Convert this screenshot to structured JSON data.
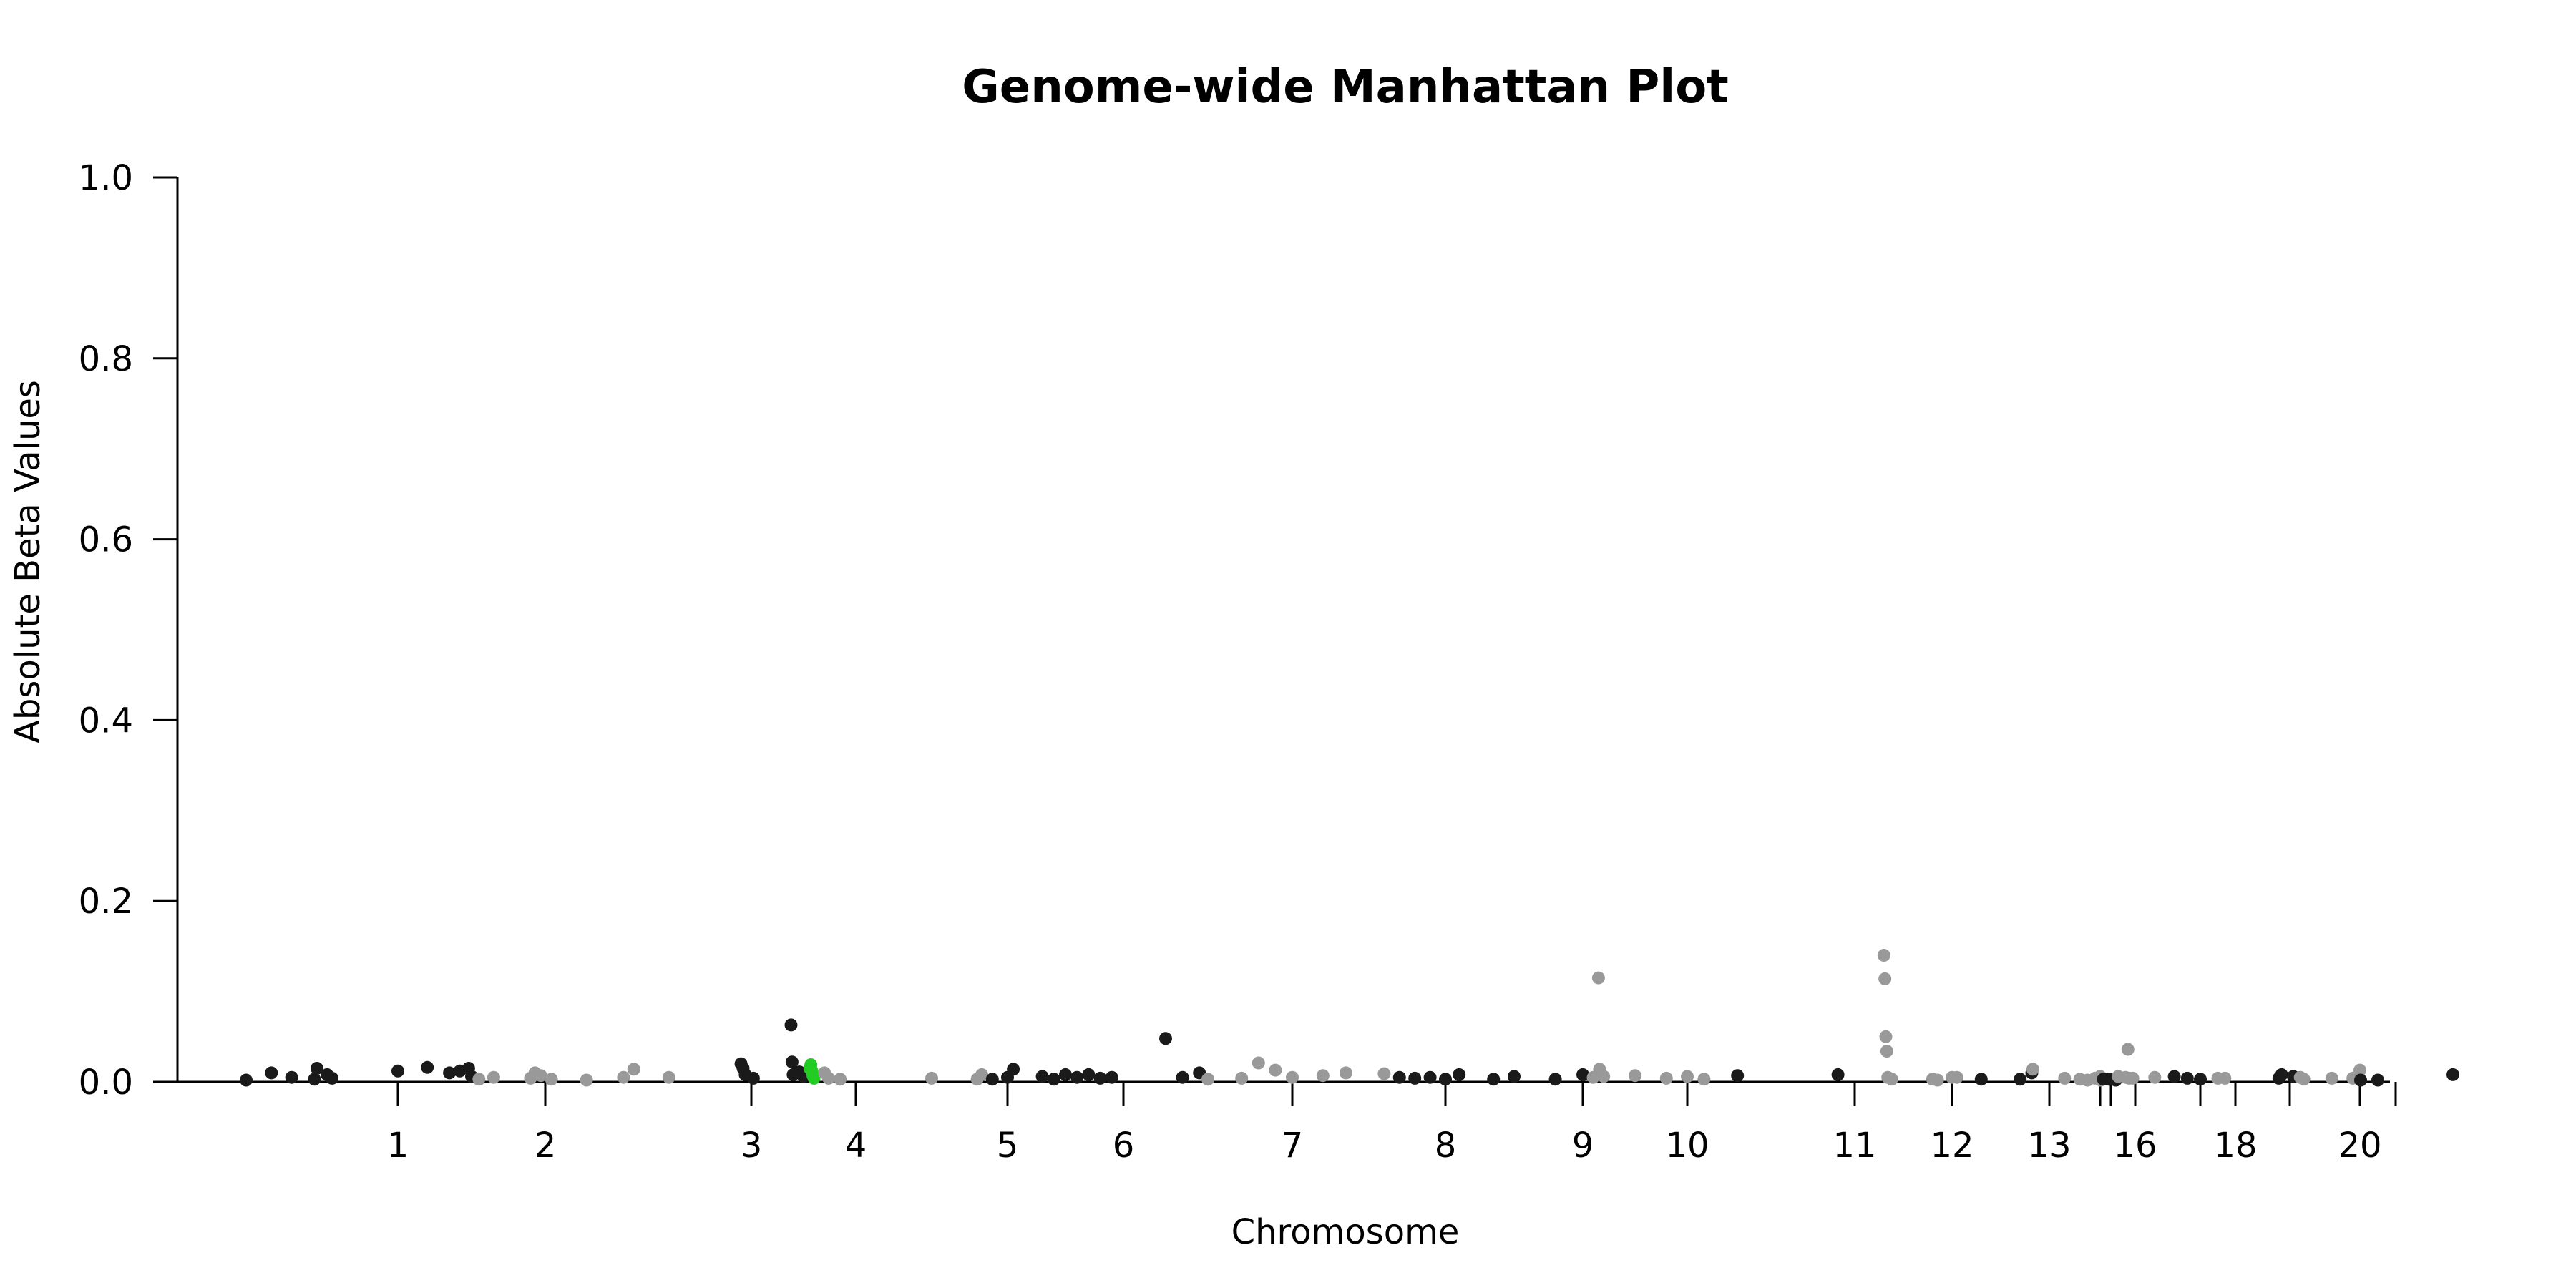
{
  "chart_data": {
    "type": "scatter",
    "subtype": "manhattan",
    "title": "Genome-wide Manhattan Plot",
    "xlabel": "Chromosome",
    "ylabel": "Absolute Beta Values",
    "ylim": [
      0,
      1.0
    ],
    "y_ticks": [
      "0.0",
      "0.2",
      "0.4",
      "0.6",
      "0.8",
      "1.0"
    ],
    "x_tick_labels": [
      "1",
      "2",
      "3",
      "4",
      "5",
      "6",
      "7",
      "8",
      "9",
      "10",
      "11",
      "12",
      "13",
      "16",
      "18",
      "20"
    ],
    "x_tick_positions": [
      1,
      2,
      3,
      4,
      5,
      6,
      7,
      8,
      9,
      10,
      11,
      12,
      13,
      16,
      18,
      20
    ],
    "x_minor_ticks": [
      14,
      15,
      17,
      19,
      21
    ],
    "grid": false,
    "legend": "none",
    "colors": {
      "chrom_odd": "#1a1a1a",
      "chrom_even": "#999999",
      "highlight": "#22cc22"
    },
    "points": [
      {
        "x": 0.4,
        "y": 0.002,
        "c": "dark"
      },
      {
        "x": 0.5,
        "y": 0.01,
        "c": "dark"
      },
      {
        "x": 0.58,
        "y": 0.005,
        "c": "dark"
      },
      {
        "x": 0.67,
        "y": 0.003,
        "c": "dark"
      },
      {
        "x": 0.68,
        "y": 0.015,
        "c": "dark"
      },
      {
        "x": 0.72,
        "y": 0.008,
        "c": "dark"
      },
      {
        "x": 0.74,
        "y": 0.004,
        "c": "dark"
      },
      {
        "x": 1.0,
        "y": 0.012,
        "c": "dark"
      },
      {
        "x": 1.2,
        "y": 0.016,
        "c": "dark"
      },
      {
        "x": 1.35,
        "y": 0.01,
        "c": "dark"
      },
      {
        "x": 1.42,
        "y": 0.012,
        "c": "dark"
      },
      {
        "x": 1.48,
        "y": 0.015,
        "c": "dark"
      },
      {
        "x": 1.5,
        "y": 0.006,
        "c": "dark"
      },
      {
        "x": 1.55,
        "y": 0.003,
        "c": "light"
      },
      {
        "x": 1.65,
        "y": 0.005,
        "c": "light"
      },
      {
        "x": 1.9,
        "y": 0.004,
        "c": "light"
      },
      {
        "x": 1.93,
        "y": 0.01,
        "c": "light"
      },
      {
        "x": 1.97,
        "y": 0.007,
        "c": "light"
      },
      {
        "x": 2.03,
        "y": 0.003,
        "c": "light"
      },
      {
        "x": 2.2,
        "y": 0.002,
        "c": "light"
      },
      {
        "x": 2.38,
        "y": 0.005,
        "c": "light"
      },
      {
        "x": 2.43,
        "y": 0.014,
        "c": "light"
      },
      {
        "x": 2.6,
        "y": 0.005,
        "c": "light"
      },
      {
        "x": 2.95,
        "y": 0.02,
        "c": "dark"
      },
      {
        "x": 2.96,
        "y": 0.015,
        "c": "dark"
      },
      {
        "x": 2.97,
        "y": 0.008,
        "c": "dark"
      },
      {
        "x": 3.02,
        "y": 0.004,
        "c": "dark"
      },
      {
        "x": 3.38,
        "y": 0.063,
        "c": "dark"
      },
      {
        "x": 3.39,
        "y": 0.022,
        "c": "dark"
      },
      {
        "x": 3.4,
        "y": 0.008,
        "c": "dark"
      },
      {
        "x": 3.46,
        "y": 0.011,
        "c": "dark"
      },
      {
        "x": 3.5,
        "y": 0.006,
        "c": "dark"
      },
      {
        "x": 3.56,
        "y": 0.015,
        "c": "highlight"
      },
      {
        "x": 3.57,
        "y": 0.019,
        "c": "highlight"
      },
      {
        "x": 3.58,
        "y": 0.012,
        "c": "highlight"
      },
      {
        "x": 3.59,
        "y": 0.007,
        "c": "highlight"
      },
      {
        "x": 3.6,
        "y": 0.004,
        "c": "highlight"
      },
      {
        "x": 3.7,
        "y": 0.01,
        "c": "light"
      },
      {
        "x": 3.74,
        "y": 0.004,
        "c": "light"
      },
      {
        "x": 3.85,
        "y": 0.003,
        "c": "light"
      },
      {
        "x": 4.5,
        "y": 0.004,
        "c": "light"
      },
      {
        "x": 4.8,
        "y": 0.003,
        "c": "light"
      },
      {
        "x": 4.83,
        "y": 0.008,
        "c": "light"
      },
      {
        "x": 4.9,
        "y": 0.003,
        "c": "dark"
      },
      {
        "x": 5.0,
        "y": 0.005,
        "c": "dark"
      },
      {
        "x": 5.05,
        "y": 0.014,
        "c": "dark"
      },
      {
        "x": 5.3,
        "y": 0.006,
        "c": "dark"
      },
      {
        "x": 5.4,
        "y": 0.003,
        "c": "dark"
      },
      {
        "x": 5.5,
        "y": 0.008,
        "c": "dark"
      },
      {
        "x": 5.6,
        "y": 0.005,
        "c": "dark"
      },
      {
        "x": 5.7,
        "y": 0.008,
        "c": "dark"
      },
      {
        "x": 5.8,
        "y": 0.004,
        "c": "dark"
      },
      {
        "x": 5.9,
        "y": 0.005,
        "c": "dark"
      },
      {
        "x": 6.25,
        "y": 0.048,
        "c": "dark"
      },
      {
        "x": 6.35,
        "y": 0.005,
        "c": "dark"
      },
      {
        "x": 6.45,
        "y": 0.01,
        "c": "dark"
      },
      {
        "x": 6.5,
        "y": 0.003,
        "c": "light"
      },
      {
        "x": 6.7,
        "y": 0.004,
        "c": "light"
      },
      {
        "x": 6.8,
        "y": 0.021,
        "c": "light"
      },
      {
        "x": 6.9,
        "y": 0.013,
        "c": "light"
      },
      {
        "x": 7.0,
        "y": 0.005,
        "c": "light"
      },
      {
        "x": 7.2,
        "y": 0.007,
        "c": "light"
      },
      {
        "x": 7.35,
        "y": 0.01,
        "c": "light"
      },
      {
        "x": 7.6,
        "y": 0.009,
        "c": "light"
      },
      {
        "x": 7.7,
        "y": 0.005,
        "c": "dark"
      },
      {
        "x": 7.8,
        "y": 0.004,
        "c": "dark"
      },
      {
        "x": 7.9,
        "y": 0.005,
        "c": "dark"
      },
      {
        "x": 8.0,
        "y": 0.003,
        "c": "dark"
      },
      {
        "x": 8.1,
        "y": 0.008,
        "c": "dark"
      },
      {
        "x": 8.35,
        "y": 0.003,
        "c": "dark"
      },
      {
        "x": 8.5,
        "y": 0.006,
        "c": "dark"
      },
      {
        "x": 8.8,
        "y": 0.003,
        "c": "dark"
      },
      {
        "x": 9.0,
        "y": 0.008,
        "c": "dark"
      },
      {
        "x": 9.1,
        "y": 0.005,
        "c": "light"
      },
      {
        "x": 9.15,
        "y": 0.115,
        "c": "light"
      },
      {
        "x": 9.16,
        "y": 0.014,
        "c": "light"
      },
      {
        "x": 9.2,
        "y": 0.006,
        "c": "light"
      },
      {
        "x": 9.5,
        "y": 0.007,
        "c": "light"
      },
      {
        "x": 9.8,
        "y": 0.004,
        "c": "light"
      },
      {
        "x": 10.0,
        "y": 0.006,
        "c": "light"
      },
      {
        "x": 10.1,
        "y": 0.003,
        "c": "light"
      },
      {
        "x": 10.3,
        "y": 0.007,
        "c": "dark"
      },
      {
        "x": 10.9,
        "y": 0.008,
        "c": "dark"
      },
      {
        "x": 11.3,
        "y": 0.14,
        "c": "light"
      },
      {
        "x": 11.31,
        "y": 0.114,
        "c": "light"
      },
      {
        "x": 11.32,
        "y": 0.05,
        "c": "light"
      },
      {
        "x": 11.33,
        "y": 0.034,
        "c": "light"
      },
      {
        "x": 11.34,
        "y": 0.005,
        "c": "light"
      },
      {
        "x": 11.38,
        "y": 0.003,
        "c": "light"
      },
      {
        "x": 11.8,
        "y": 0.003,
        "c": "light"
      },
      {
        "x": 11.85,
        "y": 0.002,
        "c": "light"
      },
      {
        "x": 12.0,
        "y": 0.005,
        "c": "light"
      },
      {
        "x": 12.05,
        "y": 0.005,
        "c": "light"
      },
      {
        "x": 12.3,
        "y": 0.003,
        "c": "dark"
      },
      {
        "x": 12.7,
        "y": 0.003,
        "c": "dark"
      },
      {
        "x": 12.82,
        "y": 0.01,
        "c": "dark"
      },
      {
        "x": 12.83,
        "y": 0.014,
        "c": "light"
      },
      {
        "x": 13.3,
        "y": 0.004,
        "c": "light"
      },
      {
        "x": 13.6,
        "y": 0.003,
        "c": "light"
      },
      {
        "x": 13.75,
        "y": 0.002,
        "c": "light"
      },
      {
        "x": 13.9,
        "y": 0.004,
        "c": "light"
      },
      {
        "x": 14.0,
        "y": 0.006,
        "c": "light"
      },
      {
        "x": 14.05,
        "y": 0.002,
        "c": "light"
      },
      {
        "x": 14.3,
        "y": 0.003,
        "c": "dark"
      },
      {
        "x": 14.8,
        "y": 0.003,
        "c": "dark"
      },
      {
        "x": 14.9,
        "y": 0.003,
        "c": "dark"
      },
      {
        "x": 15.2,
        "y": 0.002,
        "c": "dark"
      },
      {
        "x": 15.3,
        "y": 0.006,
        "c": "light"
      },
      {
        "x": 15.6,
        "y": 0.005,
        "c": "light"
      },
      {
        "x": 15.7,
        "y": 0.036,
        "c": "light"
      },
      {
        "x": 15.75,
        "y": 0.004,
        "c": "light"
      },
      {
        "x": 15.9,
        "y": 0.004,
        "c": "light"
      },
      {
        "x": 16.3,
        "y": 0.005,
        "c": "light"
      },
      {
        "x": 16.6,
        "y": 0.006,
        "c": "dark"
      },
      {
        "x": 16.8,
        "y": 0.004,
        "c": "dark"
      },
      {
        "x": 17.0,
        "y": 0.003,
        "c": "dark"
      },
      {
        "x": 17.5,
        "y": 0.004,
        "c": "light"
      },
      {
        "x": 17.7,
        "y": 0.004,
        "c": "light"
      },
      {
        "x": 18.8,
        "y": 0.004,
        "c": "dark"
      },
      {
        "x": 18.85,
        "y": 0.008,
        "c": "dark"
      },
      {
        "x": 19.05,
        "y": 0.006,
        "c": "dark"
      },
      {
        "x": 19.15,
        "y": 0.005,
        "c": "light"
      },
      {
        "x": 19.2,
        "y": 0.003,
        "c": "light"
      },
      {
        "x": 19.6,
        "y": 0.004,
        "c": "light"
      },
      {
        "x": 19.9,
        "y": 0.004,
        "c": "light"
      },
      {
        "x": 20.0,
        "y": 0.013,
        "c": "light"
      },
      {
        "x": 20.02,
        "y": 0.002,
        "c": "dark"
      },
      {
        "x": 20.5,
        "y": 0.002,
        "c": "dark"
      },
      {
        "x": 21.35,
        "y": 0.008,
        "c": "dark"
      }
    ]
  }
}
